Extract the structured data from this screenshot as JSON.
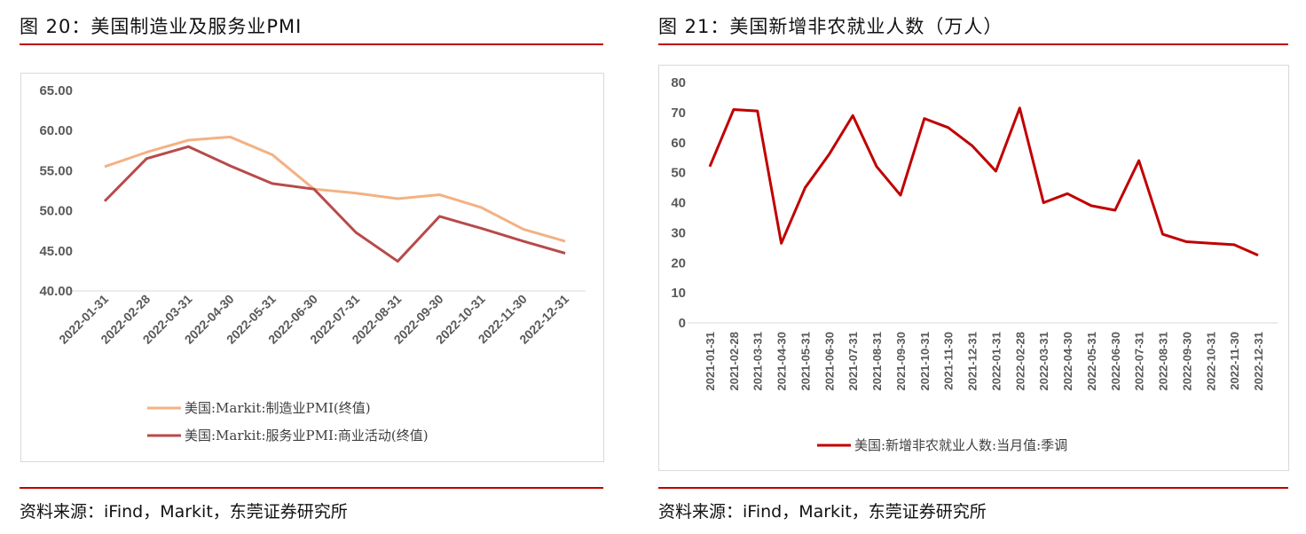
{
  "left": {
    "title": "图 20：美国制造业及服务业PMI",
    "source": "资料来源：iFind，Markit，东莞证券研究所"
  },
  "right": {
    "title": "图 21：美国新增非农就业人数（万人）",
    "source": "资料来源：iFind，Markit，东莞证券研究所"
  },
  "chart_data": [
    {
      "type": "line",
      "categories": [
        "2022-01-31",
        "2022-02-28",
        "2022-03-31",
        "2022-04-30",
        "2022-05-31",
        "2022-06-30",
        "2022-07-31",
        "2022-08-31",
        "2022-09-30",
        "2022-10-31",
        "2022-11-30",
        "2022-12-31"
      ],
      "ylim": [
        40,
        65
      ],
      "yticks": [
        "40.00",
        "45.00",
        "50.00",
        "55.00",
        "60.00",
        "65.00"
      ],
      "legend_position": "bottom",
      "series": [
        {
          "name": "美国:Markit:制造业PMI(终值)",
          "color": "#f4b183",
          "values": [
            55.5,
            57.3,
            58.8,
            59.2,
            57.0,
            52.7,
            52.2,
            51.5,
            52.0,
            50.4,
            47.7,
            46.2
          ]
        },
        {
          "name": "美国:Markit:服务业PMI:商业活动(终值)",
          "color": "#b84a4a",
          "values": [
            51.2,
            56.5,
            58.0,
            55.6,
            53.4,
            52.7,
            47.3,
            43.7,
            49.3,
            47.8,
            46.2,
            44.7
          ]
        }
      ]
    },
    {
      "type": "line",
      "categories": [
        "2021-01-31",
        "2021-02-28",
        "2021-03-31",
        "2021-04-30",
        "2021-05-31",
        "2021-06-30",
        "2021-07-31",
        "2021-08-31",
        "2021-09-30",
        "2021-10-31",
        "2021-11-30",
        "2021-12-31",
        "2022-01-31",
        "2022-02-28",
        "2022-03-31",
        "2022-04-30",
        "2022-05-31",
        "2022-06-30",
        "2022-07-31",
        "2022-08-31",
        "2022-09-30",
        "2022-10-31",
        "2022-11-30",
        "2022-12-31"
      ],
      "ylim": [
        0,
        80
      ],
      "yticks": [
        "0",
        "10",
        "20",
        "30",
        "40",
        "50",
        "60",
        "70",
        "80"
      ],
      "legend_position": "bottom",
      "series": [
        {
          "name": "美国:新增非农就业人数:当月值:季调",
          "color": "#c00000",
          "values": [
            52,
            71,
            70.5,
            26.5,
            45,
            56,
            69,
            52,
            42.5,
            68,
            65,
            59,
            50.5,
            71.5,
            40,
            43,
            39,
            37.5,
            54,
            29.5,
            27,
            26.5,
            26,
            22.5
          ]
        }
      ]
    }
  ]
}
